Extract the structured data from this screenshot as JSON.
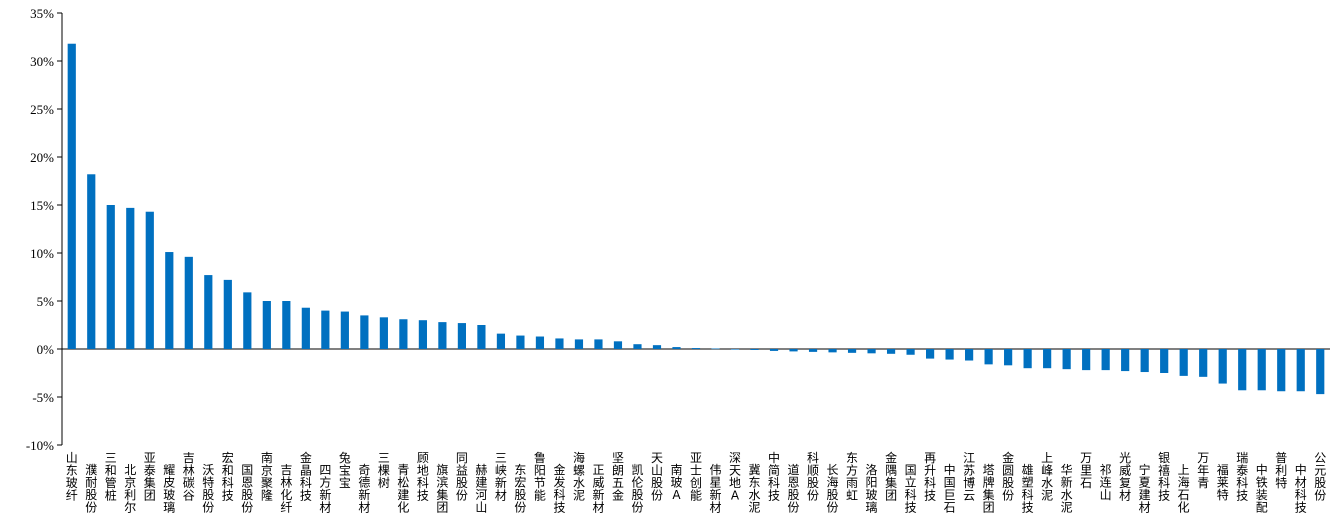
{
  "chart_data": {
    "type": "bar",
    "title": "",
    "xlabel": "",
    "ylabel": "",
    "ylim": [
      -10,
      35
    ],
    "yticks": [
      -10,
      -5,
      0,
      5,
      10,
      15,
      20,
      25,
      30,
      35
    ],
    "ytick_suffix": "%",
    "grid": false,
    "legend": "none",
    "bar_color": "#0070C0",
    "categories": [
      "山东玻纤",
      "濮耐股份",
      "三和管桩",
      "北京利尔",
      "亚泰集团",
      "耀皮玻璃",
      "吉林碳谷",
      "沃特股份",
      "宏和科技",
      "国恩股份",
      "南京聚隆",
      "吉林化纤",
      "金晶科技",
      "四方新材",
      "兔宝宝",
      "奇德新材",
      "三棵树",
      "青松建化",
      "顾地科技",
      "旗滨集团",
      "同益股份",
      "赫建河山",
      "三峡新材",
      "东宏股份",
      "鲁阳节能",
      "金发科技",
      "海螺水泥",
      "正威新材",
      "坚朗五金",
      "凯伦股份",
      "天山股份",
      "南玻A",
      "亚士创能",
      "伟星新材",
      "深天地A",
      "冀东水泥",
      "中简科技",
      "道恩股份",
      "科顺股份",
      "长海股份",
      "东方雨虹",
      "洛阳玻璃",
      "金隅集团",
      "国立科技",
      "再升科技",
      "中国巨石",
      "江苏博云",
      "塔牌集团",
      "金圆股份",
      "雄塑科技",
      "上峰水泥",
      "华新水泥",
      "万里石",
      "祁连山",
      "光威复材",
      "宁夏建材",
      "银禧科技",
      "上海石化",
      "万年青",
      "福莱特",
      "瑞泰科技",
      "中铁装配",
      "普利特",
      "中材科技",
      "公元股份"
    ],
    "values": [
      31.8,
      18.2,
      15.0,
      14.7,
      14.3,
      10.1,
      9.6,
      7.7,
      7.2,
      5.9,
      5.0,
      5.0,
      4.3,
      4.0,
      3.9,
      3.5,
      3.3,
      3.1,
      3.0,
      2.8,
      2.7,
      2.5,
      1.6,
      1.4,
      1.3,
      1.1,
      1.0,
      1.0,
      0.8,
      0.5,
      0.4,
      0.2,
      0.1,
      0.05,
      0.0,
      -0.1,
      -0.2,
      -0.25,
      -0.3,
      -0.35,
      -0.4,
      -0.45,
      -0.5,
      -0.6,
      -1.0,
      -1.1,
      -1.2,
      -1.6,
      -1.7,
      -2.0,
      -2.0,
      -2.1,
      -2.2,
      -2.2,
      -2.3,
      -2.4,
      -2.5,
      -2.8,
      -2.9,
      -3.6,
      -4.3,
      -4.3,
      -4.4,
      -4.4,
      -4.7
    ]
  }
}
